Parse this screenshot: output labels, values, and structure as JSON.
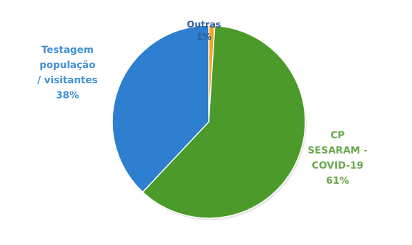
{
  "chart_data": {
    "type": "pie",
    "title": "",
    "slices": [
      {
        "name": "Outras",
        "value": 1,
        "display": "1%",
        "label_lines": [
          "Outras",
          "1%"
        ],
        "color": "#f5a623",
        "label_color": "#2f5f9e"
      },
      {
        "name": "CP SESARAM - COVID-19",
        "value": 61,
        "display": "61%",
        "label_lines": [
          "CP",
          "SESARAM -",
          "COVID-19",
          "61%"
        ],
        "color": "#4c9a2a",
        "label_color": "#6aa84f"
      },
      {
        "name": "Testagem população / visitantes",
        "value": 38,
        "display": "38%",
        "label_lines": [
          "Testagem",
          "população",
          "/ visitantes",
          "38%"
        ],
        "color": "#2f7fd0",
        "label_color": "#3f8fd6"
      }
    ],
    "start_angle_deg": 0,
    "direction": "clockwise",
    "legend": "none",
    "border_color": "#ffffff"
  }
}
